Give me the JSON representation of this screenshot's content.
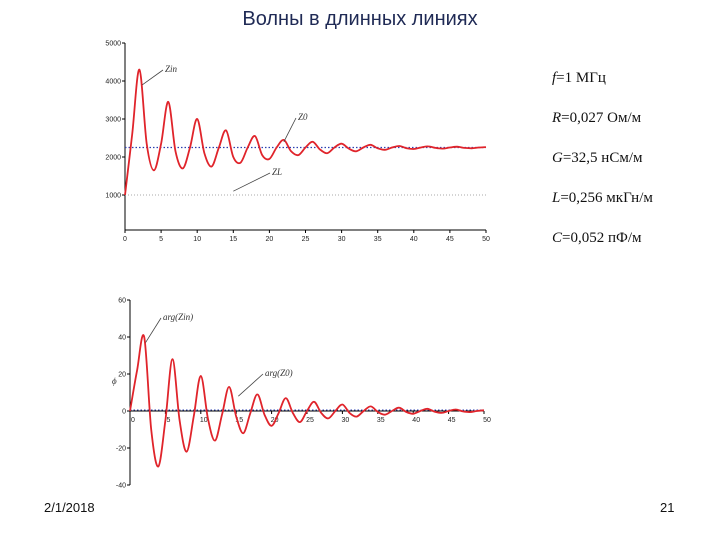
{
  "slide": {
    "title": "Волны в длинных линиях",
    "date": "2/1/2018",
    "page_number": "21"
  },
  "params": [
    {
      "sym": "f",
      "text": "=1 МГц"
    },
    {
      "sym": "R",
      "text": "=0,027 Ом/м"
    },
    {
      "sym": "G",
      "text": "=32,5 нСм/м"
    },
    {
      "sym": "L",
      "text": "=0,256 мкГн/м"
    },
    {
      "sym": "C",
      "text": "=0,052 пФ/м"
    }
  ],
  "colors": {
    "curve": "#e0242b",
    "z0_dotted": "#2b3fb0",
    "zl_dotted": "#aaaaaa",
    "axis": "#000000"
  },
  "chart_data": [
    {
      "type": "line",
      "x_ticks": [
        "0",
        "5",
        "10",
        "15",
        "20",
        "25",
        "30",
        "35",
        "40",
        "45",
        "50"
      ],
      "y_ticks": [
        "1000",
        "2000",
        "3000",
        "4000",
        "5000"
      ],
      "xlim": [
        0,
        50
      ],
      "ylim": [
        1000,
        5000
      ],
      "annotations": [
        "Zin",
        "Z0",
        "ZL"
      ],
      "z0_level": 2250,
      "zl_level": 1000,
      "series": [
        {
          "name": "Zin",
          "x": [
            0,
            1,
            2,
            3,
            4,
            5,
            6,
            7,
            8,
            9,
            10,
            11,
            12,
            13,
            14,
            15,
            16,
            17,
            18,
            19,
            20,
            21,
            22,
            23,
            24,
            25,
            26,
            27,
            28,
            29,
            30,
            31,
            32,
            33,
            34,
            35,
            36,
            37,
            38,
            39,
            40,
            41,
            42,
            43,
            44,
            45,
            46,
            47,
            48,
            49,
            50
          ],
          "y": [
            1000,
            2600,
            4300,
            2350,
            1650,
            2350,
            3450,
            2150,
            1700,
            2250,
            3000,
            2100,
            1750,
            2250,
            2700,
            2000,
            1850,
            2250,
            2550,
            2050,
            1950,
            2250,
            2450,
            2150,
            2050,
            2250,
            2400,
            2200,
            2100,
            2250,
            2350,
            2220,
            2150,
            2250,
            2320,
            2230,
            2190,
            2250,
            2290,
            2230,
            2210,
            2250,
            2280,
            2240,
            2220,
            2250,
            2270,
            2240,
            2230,
            2250,
            2260
          ]
        }
      ]
    },
    {
      "type": "line",
      "x_ticks": [
        "0",
        "5",
        "10",
        "15",
        "20",
        "25",
        "30",
        "35",
        "40",
        "45",
        "50"
      ],
      "y_ticks": [
        "60",
        "40",
        "20",
        "0",
        "-20",
        "-40"
      ],
      "xlim": [
        0,
        50
      ],
      "ylim": [
        -40,
        60
      ],
      "ylabel": "ϕ",
      "annotations": [
        "arg(Zin)",
        "arg(Z0)"
      ],
      "arg_z0_level": 0,
      "series": [
        {
          "name": "arg(Zin)",
          "x": [
            0,
            1,
            2,
            3,
            4,
            5,
            6,
            7,
            8,
            9,
            10,
            11,
            12,
            13,
            14,
            15,
            16,
            17,
            18,
            19,
            20,
            21,
            22,
            23,
            24,
            25,
            26,
            27,
            28,
            29,
            30,
            31,
            32,
            33,
            34,
            35,
            36,
            37,
            38,
            39,
            40,
            41,
            42,
            43,
            44,
            45,
            46,
            47,
            48,
            49,
            50
          ],
          "y": [
            0,
            22,
            40,
            -10,
            -30,
            -5,
            28,
            -5,
            -22,
            -3,
            19,
            -4,
            -16,
            -2,
            13,
            -3,
            -12,
            -1,
            9,
            -2,
            -8,
            -1,
            7,
            -1,
            -6,
            0,
            5,
            -1,
            -4,
            0,
            3.5,
            -1,
            -3,
            0,
            2.5,
            -0.5,
            -2,
            0,
            1.8,
            -0.5,
            -1.5,
            0,
            1.2,
            -0.3,
            -1,
            0,
            0.8,
            -0.2,
            -0.6,
            0,
            0.4
          ]
        }
      ]
    }
  ]
}
